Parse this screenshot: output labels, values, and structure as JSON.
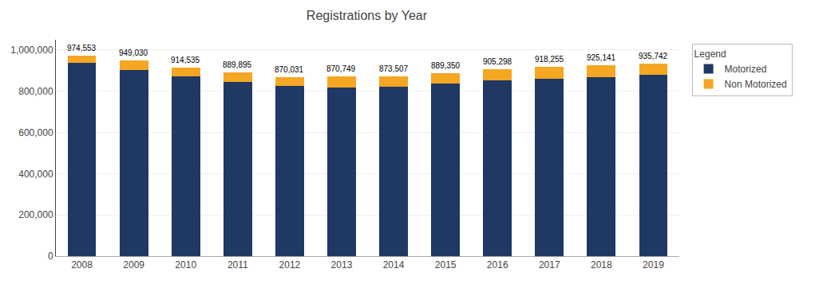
{
  "chart_data": {
    "type": "bar",
    "stacked": true,
    "title": "Registrations by Year",
    "categories": [
      "2008",
      "2009",
      "2010",
      "2011",
      "2012",
      "2013",
      "2014",
      "2015",
      "2016",
      "2017",
      "2018",
      "2019"
    ],
    "series": [
      {
        "name": "Motorized",
        "color": "#1F3864",
        "values": [
          938000,
          905000,
          871000,
          844000,
          826000,
          820000,
          822000,
          836000,
          853000,
          860000,
          869000,
          882000
        ]
      },
      {
        "name": "Non Motorized",
        "color": "#F5A623",
        "values": [
          36553,
          44030,
          43535,
          45895,
          44031,
          50749,
          51507,
          53350,
          52298,
          58255,
          56141,
          53742
        ]
      }
    ],
    "totals": [
      974553,
      949030,
      914535,
      889895,
      870031,
      870749,
      873507,
      889350,
      905298,
      918255,
      925141,
      935742
    ],
    "total_labels": [
      "974,553",
      "949,030",
      "914,535",
      "889,895",
      "870,031",
      "870,749",
      "873,507",
      "889,350",
      "905,298",
      "918,255",
      "925,141",
      "935,742"
    ],
    "ylim": [
      0,
      1050000
    ],
    "yticks": [
      0,
      {
        "value": 200000,
        "label": "200,000"
      },
      {
        "value": 400000,
        "label": "400,000"
      },
      {
        "value": 600000,
        "label": "600,000"
      },
      {
        "value": 800000,
        "label": "800,000"
      },
      {
        "value": 1000000,
        "label": "1,000,000"
      }
    ],
    "grid": true,
    "legend": "upper right",
    "legend_title": "Legend"
  }
}
